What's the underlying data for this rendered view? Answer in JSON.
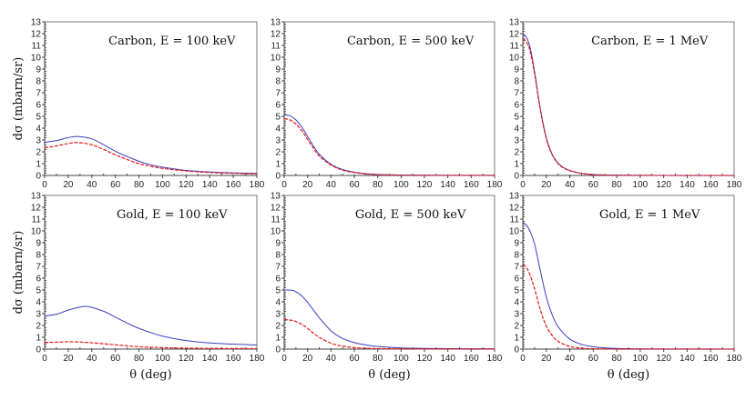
{
  "figure": {
    "ylabel": "dσ (mbarn/sr)",
    "xlabel": "θ (deg)",
    "x_ticks": [
      0,
      20,
      40,
      60,
      80,
      100,
      120,
      140,
      160,
      180
    ],
    "y_ticks": [
      0,
      1,
      2,
      3,
      4,
      5,
      6,
      7,
      8,
      9,
      10,
      11,
      12,
      13
    ],
    "colors": {
      "series_1": "#3a3fbf",
      "series_2": "#e8161a"
    }
  },
  "chart_data": [
    {
      "type": "line",
      "title": "Carbon, E = 100 keV",
      "xlabel": "",
      "ylabel": "dσ (mbarn/sr)",
      "xlim": [
        0,
        180
      ],
      "ylim": [
        0,
        13
      ],
      "x": [
        0,
        10,
        20,
        28,
        40,
        50,
        60,
        70,
        80,
        90,
        100,
        120,
        140,
        160,
        180
      ],
      "series": [
        {
          "name": "solid (blue)",
          "style": "solid",
          "color": "#3a3fbf",
          "values": [
            2.8,
            2.95,
            3.2,
            3.3,
            3.1,
            2.6,
            2.05,
            1.6,
            1.2,
            0.9,
            0.7,
            0.42,
            0.3,
            0.22,
            0.18
          ]
        },
        {
          "name": "dashed (red)",
          "style": "dashed",
          "color": "#e8161a",
          "values": [
            2.35,
            2.5,
            2.7,
            2.78,
            2.6,
            2.2,
            1.75,
            1.35,
            1.0,
            0.78,
            0.6,
            0.38,
            0.25,
            0.18,
            0.13
          ]
        }
      ]
    },
    {
      "type": "line",
      "title": "Carbon, E = 500 keV",
      "xlabel": "",
      "ylabel": "",
      "xlim": [
        0,
        180
      ],
      "ylim": [
        0,
        13
      ],
      "x": [
        0,
        5,
        10,
        15,
        20,
        25,
        30,
        40,
        50,
        60,
        70,
        80,
        100,
        120,
        140,
        160,
        180
      ],
      "series": [
        {
          "name": "solid (blue)",
          "style": "solid",
          "color": "#3a3fbf",
          "values": [
            5.15,
            5.05,
            4.7,
            4.1,
            3.3,
            2.5,
            1.8,
            0.95,
            0.5,
            0.28,
            0.15,
            0.08,
            0.04,
            0.02,
            0.01,
            0.01,
            0.01
          ]
        },
        {
          "name": "dashed (red)",
          "style": "dashed",
          "color": "#e8161a",
          "values": [
            4.8,
            4.7,
            4.35,
            3.8,
            3.05,
            2.3,
            1.65,
            0.88,
            0.45,
            0.25,
            0.13,
            0.07,
            0.03,
            0.02,
            0.01,
            0.01,
            0.01
          ]
        }
      ]
    },
    {
      "type": "line",
      "title": "Carbon, E = 1 MeV",
      "xlabel": "",
      "ylabel": "",
      "xlim": [
        0,
        180
      ],
      "ylim": [
        0,
        13
      ],
      "x": [
        0,
        3,
        6,
        10,
        15,
        20,
        25,
        30,
        35,
        40,
        50,
        60,
        70,
        80,
        100,
        140,
        180
      ],
      "series": [
        {
          "name": "solid (blue)",
          "style": "solid",
          "color": "#3a3fbf",
          "values": [
            12.0,
            11.7,
            10.9,
            8.8,
            5.6,
            3.2,
            1.8,
            1.05,
            0.65,
            0.42,
            0.18,
            0.08,
            0.04,
            0.02,
            0.01,
            0.0,
            0.0
          ]
        },
        {
          "name": "dashed (red)",
          "style": "dashed",
          "color": "#e8161a",
          "values": [
            11.6,
            11.3,
            10.6,
            8.6,
            5.5,
            3.1,
            1.75,
            1.0,
            0.62,
            0.4,
            0.17,
            0.07,
            0.03,
            0.02,
            0.01,
            0.0,
            0.0
          ]
        }
      ]
    },
    {
      "type": "line",
      "title": "Gold, E = 100 keV",
      "xlabel": "θ (deg)",
      "ylabel": "dσ (mbarn/sr)",
      "xlim": [
        0,
        180
      ],
      "ylim": [
        0,
        13
      ],
      "x": [
        0,
        10,
        20,
        30,
        37,
        50,
        60,
        70,
        80,
        90,
        100,
        120,
        140,
        160,
        180
      ],
      "series": [
        {
          "name": "solid (blue)",
          "style": "solid",
          "color": "#3a3fbf",
          "values": [
            2.8,
            2.95,
            3.3,
            3.55,
            3.6,
            3.2,
            2.7,
            2.2,
            1.75,
            1.4,
            1.1,
            0.72,
            0.52,
            0.42,
            0.35
          ]
        },
        {
          "name": "dashed (red)",
          "style": "dashed",
          "color": "#e8161a",
          "values": [
            0.55,
            0.58,
            0.62,
            0.6,
            0.56,
            0.45,
            0.36,
            0.28,
            0.2,
            0.15,
            0.12,
            0.08,
            0.06,
            0.05,
            0.04
          ]
        }
      ]
    },
    {
      "type": "line",
      "title": "Gold, E = 500 keV",
      "xlabel": "θ (deg)",
      "ylabel": "",
      "xlim": [
        0,
        180
      ],
      "ylim": [
        0,
        13
      ],
      "x": [
        0,
        8,
        15,
        20,
        25,
        30,
        40,
        50,
        60,
        70,
        80,
        100,
        120,
        140,
        160,
        180
      ],
      "series": [
        {
          "name": "solid (blue)",
          "style": "solid",
          "color": "#3a3fbf",
          "values": [
            5.0,
            4.95,
            4.5,
            3.95,
            3.3,
            2.65,
            1.55,
            0.9,
            0.55,
            0.35,
            0.22,
            0.1,
            0.06,
            0.04,
            0.03,
            0.02
          ]
        },
        {
          "name": "dashed (red)",
          "style": "dashed",
          "color": "#e8161a",
          "values": [
            2.5,
            2.4,
            2.1,
            1.75,
            1.35,
            1.0,
            0.5,
            0.25,
            0.13,
            0.07,
            0.04,
            0.02,
            0.01,
            0.01,
            0.0,
            0.0
          ]
        }
      ]
    },
    {
      "type": "line",
      "title": "Gold, E = 1 MeV",
      "xlabel": "θ (deg)",
      "ylabel": "",
      "xlim": [
        0,
        180
      ],
      "ylim": [
        0,
        13
      ],
      "x": [
        0,
        3,
        6,
        10,
        15,
        20,
        25,
        30,
        40,
        50,
        60,
        70,
        80,
        100,
        140,
        180
      ],
      "series": [
        {
          "name": "solid (blue)",
          "style": "solid",
          "color": "#3a3fbf",
          "values": [
            10.7,
            10.5,
            10.0,
            8.9,
            6.6,
            4.4,
            2.9,
            1.9,
            0.85,
            0.4,
            0.2,
            0.1,
            0.06,
            0.02,
            0.01,
            0.0
          ]
        },
        {
          "name": "dashed (red)",
          "style": "dashed",
          "color": "#e8161a",
          "values": [
            7.15,
            6.9,
            6.3,
            5.1,
            3.3,
            1.95,
            1.15,
            0.65,
            0.22,
            0.08,
            0.03,
            0.01,
            0.0,
            0.0,
            0.0,
            0.0
          ]
        }
      ]
    }
  ]
}
